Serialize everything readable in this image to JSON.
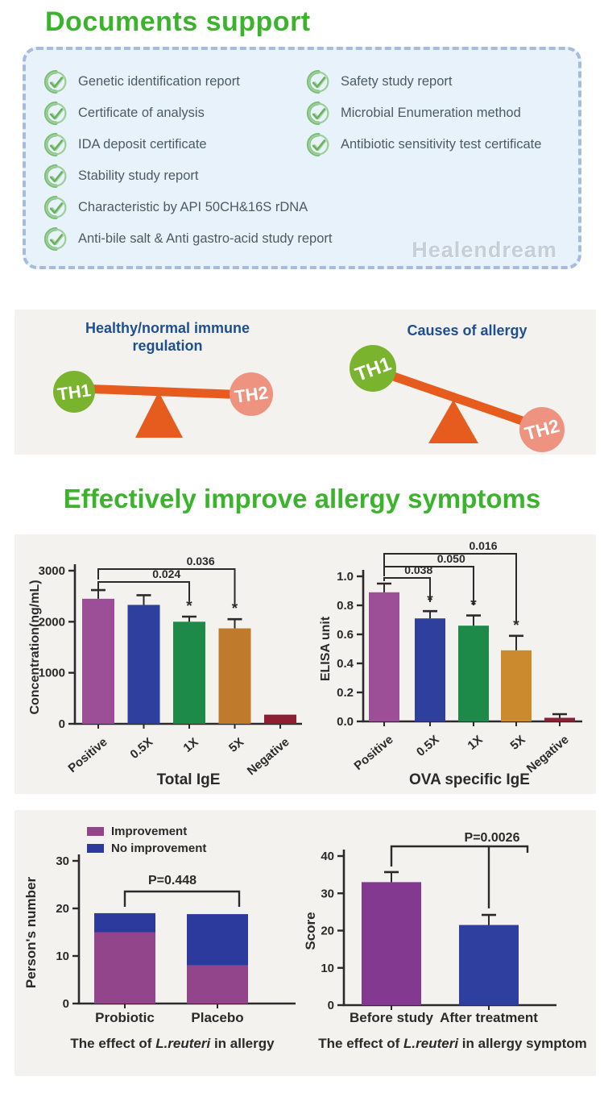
{
  "page": {
    "watermark": "Healendream"
  },
  "documents": {
    "title": "Documents support",
    "items_left": [
      "Genetic identification report",
      "Certificate of analysis",
      "IDA deposit certificate",
      "Stability study report",
      "Characteristic by API 50CH&16S rDNA",
      "Anti-bile salt & Anti gastro-acid study report"
    ],
    "items_right": [
      "Safety study report",
      "Microbial Enumeration method",
      "Antibiotic sensitivity test certificate"
    ]
  },
  "immune": {
    "left_title_line1": "Healthy/normal immune",
    "left_title_line2": "regulation",
    "right_title": "Causes of allergy",
    "th1": "TH1",
    "th2": "TH2",
    "colors": {
      "th1": "#7ab32e",
      "th2": "#ee937f",
      "beam": "#e55c1e",
      "title_blue": "#1d4f91"
    }
  },
  "allergy_section": {
    "title": "Effectively improve allergy symptoms"
  },
  "chart_data": [
    {
      "type": "bar",
      "title": "Total IgE",
      "ylabel": "Concentration(ng/mL)",
      "ylim": [
        0,
        3000
      ],
      "yticks": [
        "0",
        "1000",
        "2000",
        "3000"
      ],
      "ytick_values": [
        0,
        1000,
        2000,
        3000
      ],
      "categories": [
        "Positive",
        "0.5X",
        "1X",
        "5X",
        "Negative"
      ],
      "values": [
        2450,
        2330,
        2000,
        1870,
        180
      ],
      "errors_top": [
        2620,
        2520,
        2100,
        2050,
        null
      ],
      "stars": [
        false,
        false,
        true,
        true,
        false
      ],
      "colors": [
        "#9c4f96",
        "#2e3f9e",
        "#1d8a4a",
        "#c07a2b",
        "#8e1f33"
      ],
      "brackets": [
        {
          "from": 0,
          "to": 2,
          "label": "0.024"
        },
        {
          "from": 0,
          "to": 3,
          "label": "0.036"
        }
      ],
      "legend_position": "none",
      "grid": false
    },
    {
      "type": "bar",
      "title": "OVA specific IgE",
      "ylabel": "ELISA unit",
      "ylim": [
        0,
        1.0
      ],
      "yticks": [
        "0.0",
        "0.2",
        "0.4",
        "0.6",
        "0.8",
        "1.0"
      ],
      "ytick_values": [
        0,
        0.2,
        0.4,
        0.6,
        0.8,
        1.0
      ],
      "categories": [
        "Positive",
        "0.5X",
        "1X",
        "5X",
        "Negative"
      ],
      "values": [
        0.89,
        0.71,
        0.66,
        0.49,
        0.025
      ],
      "errors_top": [
        0.95,
        0.76,
        0.73,
        0.59,
        0.05
      ],
      "stars": [
        false,
        true,
        true,
        true,
        false
      ],
      "colors": [
        "#9c4f96",
        "#2e3f9e",
        "#1d8a4a",
        "#cc8a2e",
        "#8e1f33"
      ],
      "brackets": [
        {
          "from": 0,
          "to": 1,
          "label": "0.038"
        },
        {
          "from": 0,
          "to": 2,
          "label": "0.050"
        },
        {
          "from": 0,
          "to": 3,
          "label": "0.016"
        }
      ],
      "legend_position": "none",
      "grid": false
    },
    {
      "type": "stacked-bar",
      "caption_parts": [
        {
          "text": "The effect of ",
          "italic": false
        },
        {
          "text": "L.reuteri",
          "italic": true
        },
        {
          "text": " in allergy",
          "italic": false
        }
      ],
      "ylabel": "Person's number",
      "ylim": [
        0,
        30
      ],
      "yticks": [
        "0",
        "10",
        "20",
        "30"
      ],
      "ytick_values": [
        0,
        10,
        20,
        30
      ],
      "categories": [
        "Probiotic",
        "Placebo"
      ],
      "series": [
        {
          "name": "Improvement",
          "color": "#93458b",
          "values": [
            15,
            8
          ]
        },
        {
          "name": "No improvement",
          "color": "#2c3a9d",
          "values": [
            4,
            10.8
          ]
        }
      ],
      "p_bracket": {
        "from": 0,
        "to": 1,
        "label": "P=0.448"
      },
      "legend_position": "top-left",
      "grid": false
    },
    {
      "type": "bar",
      "caption_parts": [
        {
          "text": "The effect of ",
          "italic": false
        },
        {
          "text": "L.reuteri",
          "italic": true
        },
        {
          "text": " in allergy symptom",
          "italic": false
        }
      ],
      "ylabel": "Score",
      "ylim": [
        0,
        40
      ],
      "yticks": [
        "0",
        "10",
        "20",
        "30",
        "40"
      ],
      "ytick_values": [
        0,
        10,
        20,
        30,
        40
      ],
      "categories": [
        "Before study",
        "After treatment"
      ],
      "values": [
        33,
        21.5
      ],
      "errors_top": [
        35.7,
        24.2
      ],
      "stars": [
        false,
        false
      ],
      "colors": [
        "#82398f",
        "#2e3f9f"
      ],
      "p_label": "P=0.0026",
      "legend_position": "none",
      "grid": false
    }
  ]
}
